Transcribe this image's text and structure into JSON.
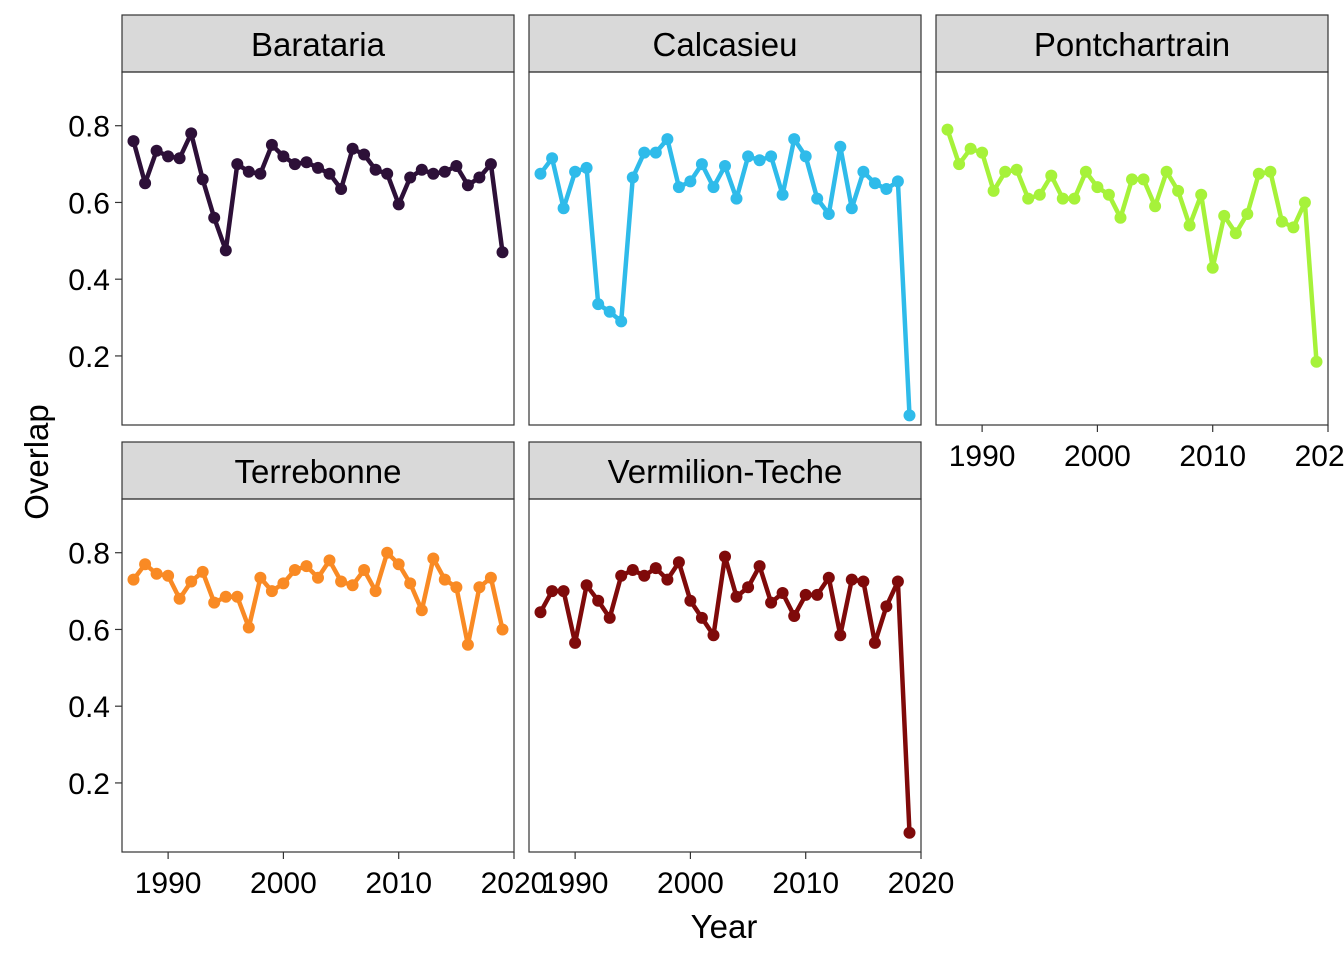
{
  "chart_data": {
    "type": "line",
    "xlabel": "Year",
    "ylabel": "Overlap",
    "xlim": [
      1986,
      2020
    ],
    "ylim": [
      0.02,
      0.94
    ],
    "x_ticks": [
      1990,
      2000,
      2010,
      2020
    ],
    "y_ticks": [
      0.2,
      0.4,
      0.6,
      0.8
    ],
    "x_tick_labels": [
      "1990",
      "2000",
      "2010",
      "2020"
    ],
    "y_tick_labels": [
      "0.2",
      "0.4",
      "0.6",
      "0.8"
    ],
    "x": [
      1987,
      1988,
      1989,
      1990,
      1991,
      1992,
      1993,
      1994,
      1995,
      1996,
      1997,
      1998,
      1999,
      2000,
      2001,
      2002,
      2003,
      2004,
      2005,
      2006,
      2007,
      2008,
      2009,
      2010,
      2011,
      2012,
      2013,
      2014,
      2015,
      2016,
      2017,
      2018,
      2019
    ],
    "panels": [
      {
        "name": "Barataria",
        "color": "#2d1038",
        "values": [
          0.76,
          0.65,
          0.735,
          0.72,
          0.715,
          0.78,
          0.66,
          0.56,
          0.475,
          0.7,
          0.68,
          0.675,
          0.75,
          0.72,
          0.7,
          0.705,
          0.69,
          0.675,
          0.635,
          0.74,
          0.725,
          0.685,
          0.675,
          0.595,
          0.665,
          0.685,
          0.675,
          0.68,
          0.695,
          0.645,
          0.665,
          0.7,
          0.47
        ]
      },
      {
        "name": "Calcasieu",
        "color": "#2fbbea",
        "values": [
          0.675,
          0.715,
          0.585,
          0.68,
          0.69,
          0.335,
          0.315,
          0.29,
          0.665,
          0.73,
          0.73,
          0.765,
          0.64,
          0.655,
          0.7,
          0.64,
          0.695,
          0.61,
          0.72,
          0.71,
          0.72,
          0.62,
          0.765,
          0.72,
          0.61,
          0.57,
          0.745,
          0.585,
          0.68,
          0.65,
          0.635,
          0.655,
          0.045
        ]
      },
      {
        "name": "Pontchartrain",
        "color": "#a6f23a",
        "values": [
          0.79,
          0.7,
          0.74,
          0.73,
          0.63,
          0.68,
          0.685,
          0.61,
          0.62,
          0.67,
          0.61,
          0.61,
          0.68,
          0.64,
          0.62,
          0.56,
          0.66,
          0.66,
          0.59,
          0.68,
          0.63,
          0.54,
          0.62,
          0.43,
          0.565,
          0.52,
          0.57,
          0.675,
          0.68,
          0.55,
          0.535,
          0.6,
          0.185
        ]
      },
      {
        "name": "Terrebonne",
        "color": "#f98a24",
        "values": [
          0.73,
          0.77,
          0.745,
          0.74,
          0.68,
          0.725,
          0.75,
          0.67,
          0.685,
          0.685,
          0.605,
          0.735,
          0.7,
          0.72,
          0.755,
          0.765,
          0.735,
          0.78,
          0.725,
          0.715,
          0.755,
          0.7,
          0.8,
          0.77,
          0.72,
          0.65,
          0.785,
          0.73,
          0.71,
          0.56,
          0.71,
          0.735,
          0.6
        ]
      },
      {
        "name": "Vermilion-Teche",
        "color": "#7f0a0a",
        "values": [
          0.645,
          0.7,
          0.7,
          0.565,
          0.715,
          0.675,
          0.63,
          0.74,
          0.755,
          0.74,
          0.76,
          0.73,
          0.775,
          0.675,
          0.63,
          0.585,
          0.79,
          0.685,
          0.71,
          0.765,
          0.67,
          0.695,
          0.635,
          0.69,
          0.69,
          0.735,
          0.585,
          0.73,
          0.725,
          0.565,
          0.66,
          0.725,
          0.07
        ]
      }
    ]
  }
}
